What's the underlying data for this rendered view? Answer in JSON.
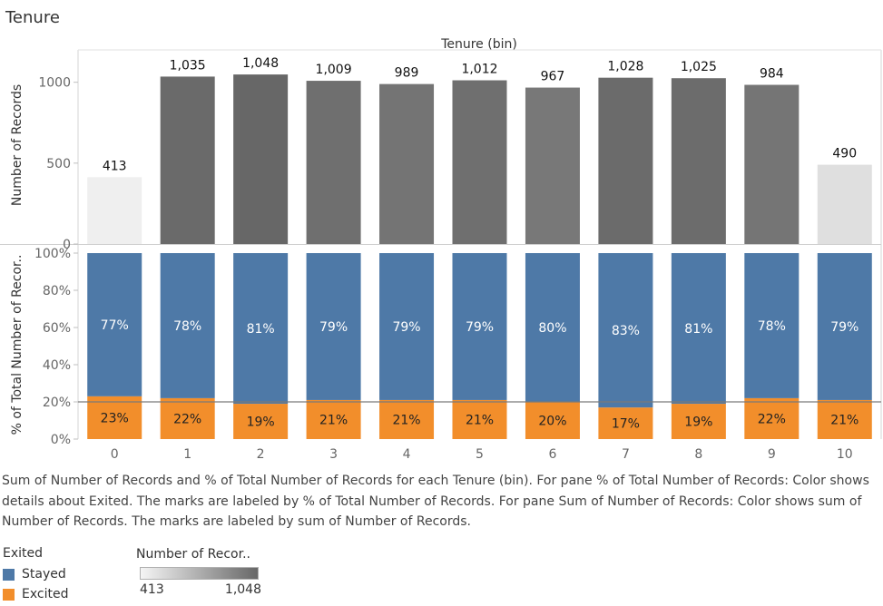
{
  "sheet": {
    "title": "Tenure"
  },
  "chart_data": {
    "type": "bar",
    "column_title": "Tenure (bin)",
    "categories": [
      "0",
      "1",
      "2",
      "3",
      "4",
      "5",
      "6",
      "7",
      "8",
      "9",
      "10"
    ],
    "top_pane": {
      "ylabel": "Number of Records",
      "ylim": [
        0,
        1200
      ],
      "yticks": [
        0,
        500,
        1000
      ],
      "ytick_labels": [
        "0",
        "500",
        "1000"
      ],
      "values": [
        413,
        1035,
        1048,
        1009,
        989,
        1012,
        967,
        1028,
        1025,
        984,
        490
      ],
      "value_labels": [
        "413",
        "1,035",
        "1,048",
        "1,009",
        "989",
        "1,012",
        "967",
        "1,028",
        "1,025",
        "984",
        "490"
      ],
      "color_low": "#efefef",
      "color_high": "#676767"
    },
    "bottom_pane": {
      "ylabel": "% of Total Number of Recor..",
      "ylim": [
        0,
        100
      ],
      "yticks": [
        0,
        20,
        40,
        60,
        80,
        100
      ],
      "ytick_labels": [
        "0%",
        "20%",
        "40%",
        "60%",
        "80%",
        "100%"
      ],
      "reference_line": 20,
      "series": [
        {
          "name": "Excited",
          "color": "#f28e2b",
          "values": [
            23,
            22,
            19,
            21,
            21,
            21,
            20,
            17,
            19,
            22,
            21
          ],
          "labels": [
            "23%",
            "22%",
            "19%",
            "21%",
            "21%",
            "21%",
            "20%",
            "17%",
            "19%",
            "22%",
            "21%"
          ]
        },
        {
          "name": "Stayed",
          "color": "#4e79a7",
          "values": [
            77,
            78,
            81,
            79,
            79,
            79,
            80,
            83,
            81,
            78,
            79
          ],
          "labels": [
            "77%",
            "78%",
            "81%",
            "79%",
            "79%",
            "79%",
            "80%",
            "83%",
            "81%",
            "78%",
            "79%"
          ]
        }
      ]
    },
    "grid": false
  },
  "caption": {
    "text": "Sum of Number of Records and % of Total Number of Records for each Tenure (bin).  For pane % of Total Number of Records: Color shows details about Exited.  The marks are labeled by % of Total Number of Records.  For pane Sum of Number of Records: Color shows sum of Number of Records.  The marks are labeled by sum of Number of Records."
  },
  "legend_color": {
    "title": "Exited",
    "items": [
      {
        "label": "Stayed",
        "color": "#4e79a7"
      },
      {
        "label": "Excited",
        "color": "#f28e2b"
      }
    ]
  },
  "legend_size": {
    "title": "Number of Recor..",
    "min_label": "413",
    "max_label": "1,048",
    "gradient_from": "#f5f5f5",
    "gradient_to": "#676767"
  }
}
